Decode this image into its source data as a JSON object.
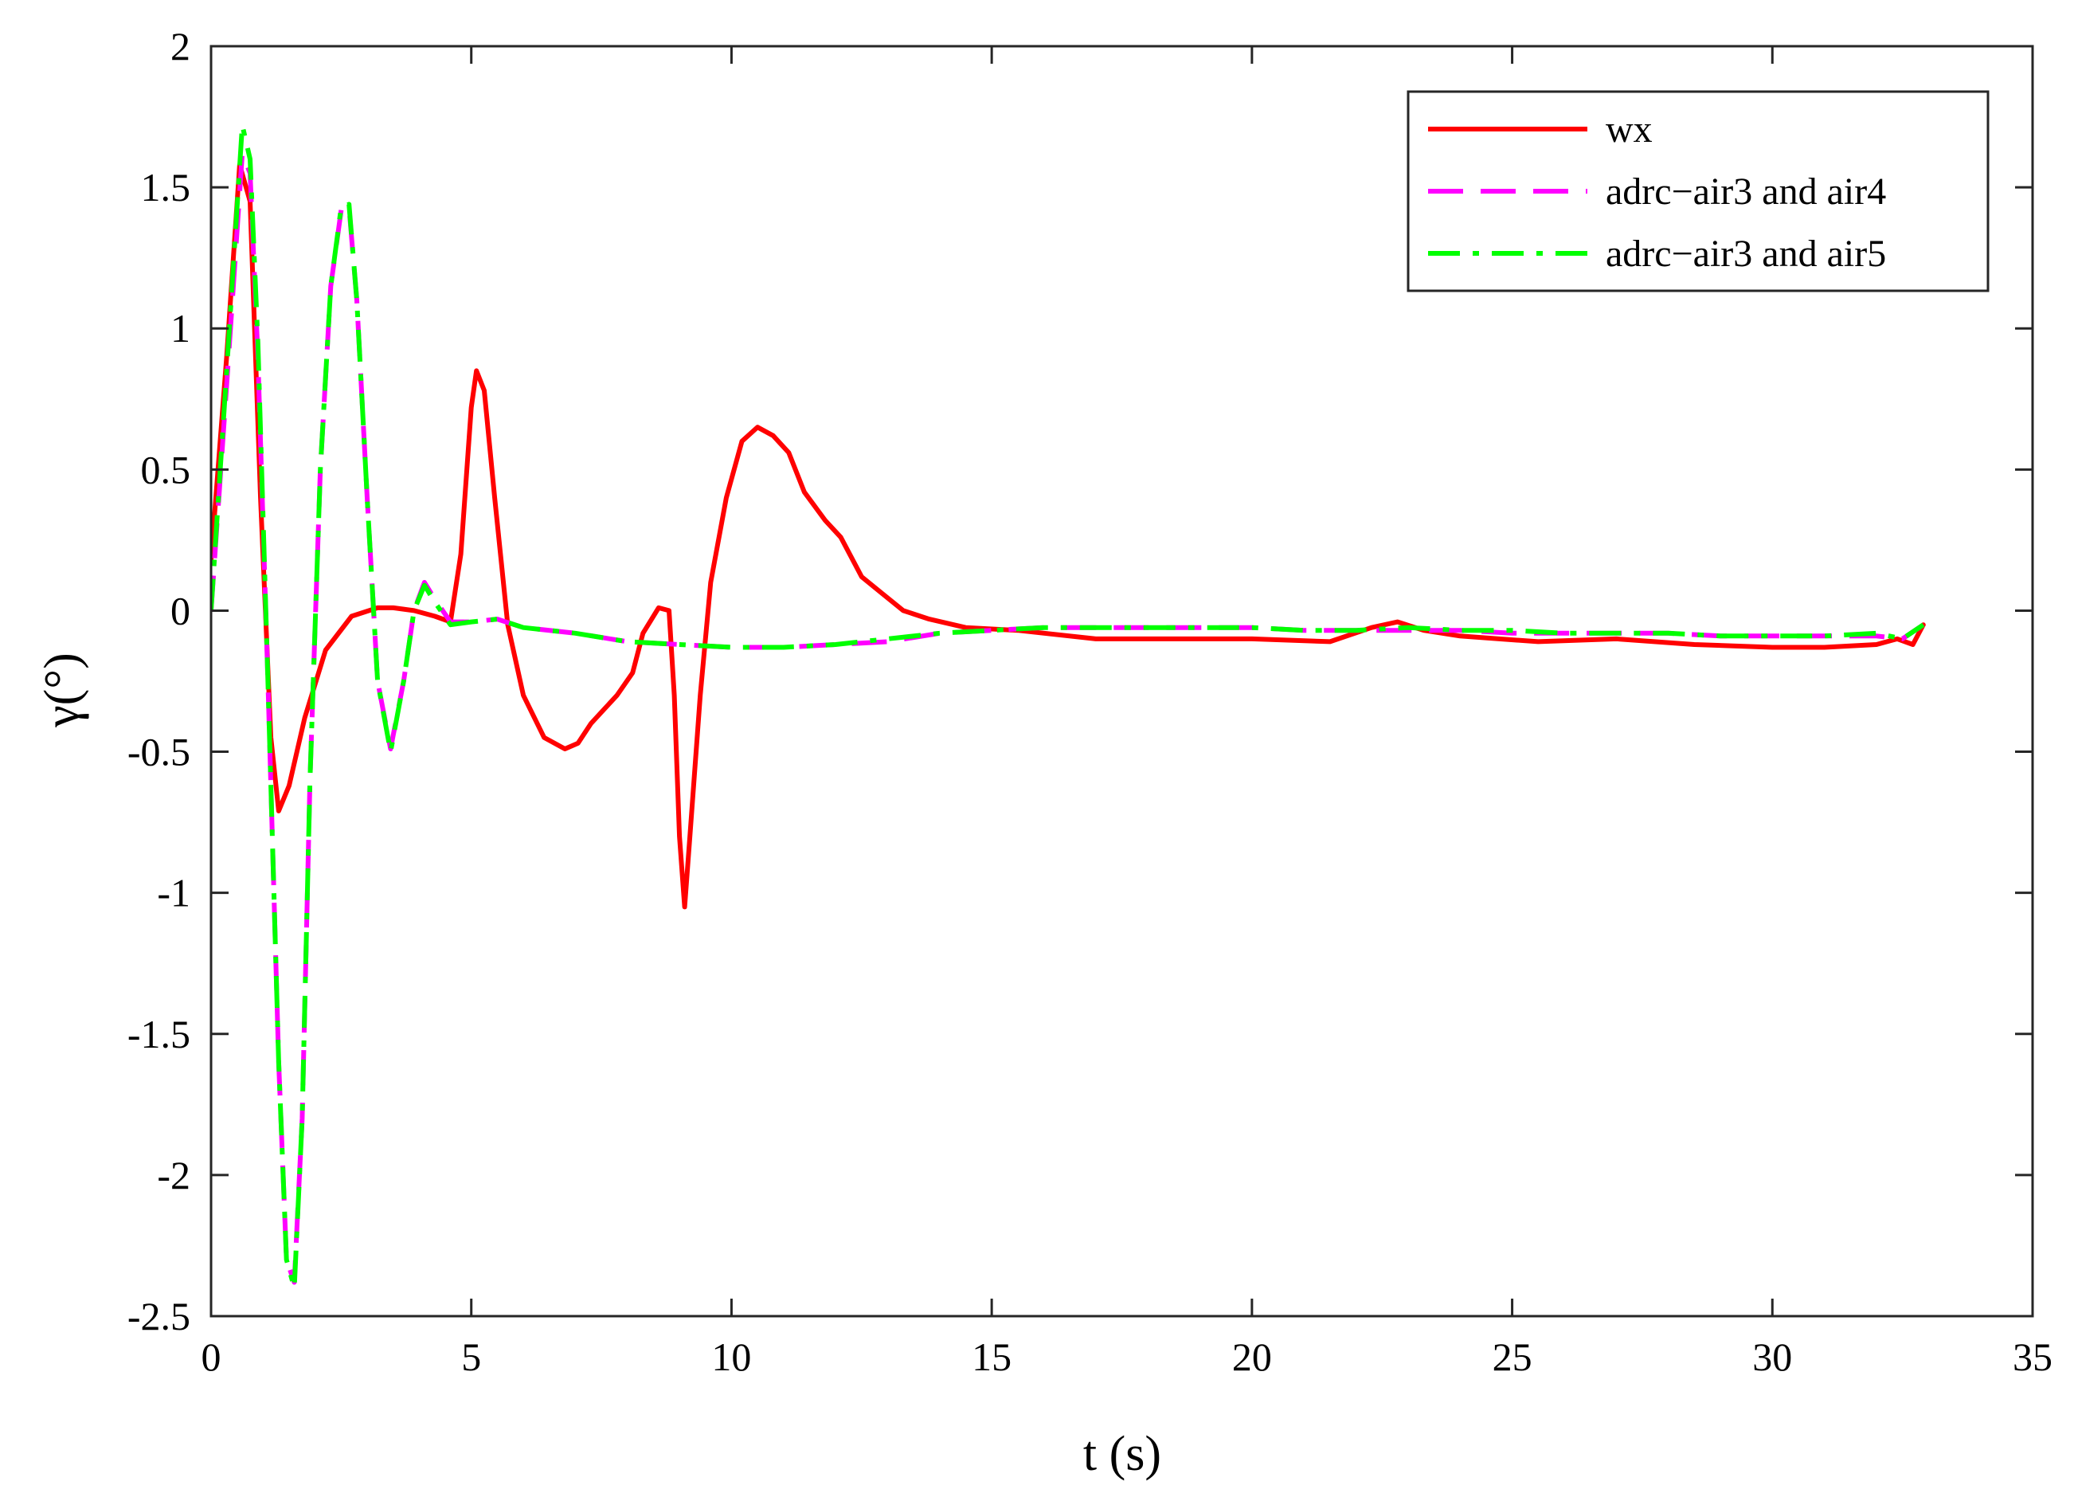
{
  "chart_data": {
    "type": "line",
    "title": "",
    "xlabel": "t (s)",
    "ylabel": "γ(°)",
    "xlim": [
      0,
      35
    ],
    "ylim": [
      -2.5,
      2
    ],
    "xticks": [
      0,
      5,
      10,
      15,
      20,
      25,
      30,
      35
    ],
    "yticks": [
      2,
      1.5,
      1,
      0.5,
      0,
      -0.5,
      -1,
      -1.5,
      -2,
      -2.5
    ],
    "xtick_labels": [
      "0",
      "5",
      "10",
      "15",
      "20",
      "25",
      "30",
      "35"
    ],
    "ytick_labels": [
      "2",
      "1.5",
      "1",
      "0.5",
      "0",
      "-0.5",
      "-1",
      "-1.5",
      "-2",
      "-2.5"
    ],
    "grid": false,
    "legend_position": "top-right",
    "series": [
      {
        "name": "wx",
        "color": "#ff0000",
        "style": "solid",
        "x": [
          0,
          0.3,
          0.55,
          0.75,
          0.95,
          1.15,
          1.3,
          1.5,
          1.8,
          2.2,
          2.7,
          3.2,
          3.5,
          3.9,
          4.3,
          4.6,
          4.8,
          5.0,
          5.1,
          5.25,
          5.45,
          5.7,
          6.0,
          6.4,
          6.8,
          7.05,
          7.3,
          7.8,
          8.1,
          8.3,
          8.6,
          8.8,
          8.9,
          9.0,
          9.1,
          9.2,
          9.4,
          9.6,
          9.9,
          10.2,
          10.5,
          10.8,
          11.1,
          11.4,
          11.8,
          12.1,
          12.5,
          12.9,
          13.3,
          13.8,
          14.5,
          15.5,
          17,
          19,
          20,
          21.5,
          22.3,
          22.8,
          23.3,
          24,
          25.5,
          27,
          28.5,
          30,
          31,
          32,
          32.4,
          32.7,
          32.9
        ],
        "y": [
          0.18,
          0.9,
          1.58,
          1.45,
          0.4,
          -0.45,
          -0.71,
          -0.62,
          -0.38,
          -0.14,
          -0.02,
          0.01,
          0.01,
          0.0,
          -0.02,
          -0.04,
          0.2,
          0.72,
          0.85,
          0.78,
          0.4,
          -0.05,
          -0.3,
          -0.45,
          -0.49,
          -0.47,
          -0.4,
          -0.3,
          -0.22,
          -0.08,
          0.01,
          0.0,
          -0.3,
          -0.8,
          -1.05,
          -0.8,
          -0.3,
          0.1,
          0.4,
          0.6,
          0.65,
          0.62,
          0.56,
          0.42,
          0.32,
          0.26,
          0.12,
          0.06,
          0.0,
          -0.03,
          -0.06,
          -0.07,
          -0.1,
          -0.1,
          -0.1,
          -0.11,
          -0.06,
          -0.04,
          -0.07,
          -0.09,
          -0.11,
          -0.1,
          -0.12,
          -0.13,
          -0.13,
          -0.12,
          -0.1,
          -0.12,
          -0.05
        ]
      },
      {
        "name": "adrc−air3 and air4",
        "color": "#ff00ff",
        "style": "dashed",
        "x": [
          0,
          0.3,
          0.6,
          0.75,
          0.9,
          1.1,
          1.3,
          1.45,
          1.6,
          1.75,
          1.9,
          2.1,
          2.3,
          2.5,
          2.65,
          2.8,
          3.0,
          3.2,
          3.45,
          3.7,
          3.9,
          4.1,
          4.3,
          4.6,
          5.0,
          5.5,
          6.0,
          7.0,
          8.0,
          9.0,
          10.0,
          11.0,
          12.0,
          13.0,
          14.0,
          15.0,
          16.0,
          17.0,
          18.0,
          19.0,
          20.0,
          21.0,
          22.0,
          23.0,
          24.0,
          25.0,
          26.0,
          27.0,
          28.0,
          29.0,
          30.0,
          31.0,
          32.0,
          32.5,
          32.9
        ],
        "y": [
          0.0,
          0.8,
          1.62,
          1.55,
          0.9,
          -0.3,
          -1.6,
          -2.3,
          -2.38,
          -1.8,
          -0.6,
          0.5,
          1.15,
          1.42,
          1.43,
          1.1,
          0.4,
          -0.25,
          -0.49,
          -0.25,
          0.0,
          0.1,
          0.04,
          -0.04,
          -0.04,
          -0.03,
          -0.06,
          -0.08,
          -0.11,
          -0.12,
          -0.13,
          -0.13,
          -0.12,
          -0.11,
          -0.08,
          -0.07,
          -0.06,
          -0.06,
          -0.06,
          -0.06,
          -0.06,
          -0.07,
          -0.07,
          -0.07,
          -0.07,
          -0.08,
          -0.08,
          -0.08,
          -0.08,
          -0.09,
          -0.09,
          -0.09,
          -0.09,
          -0.1,
          -0.05
        ]
      },
      {
        "name": "adrc−air3 and air5",
        "color": "#00ff00",
        "style": "dashdot",
        "x": [
          0,
          0.3,
          0.6,
          0.75,
          0.9,
          1.1,
          1.3,
          1.45,
          1.6,
          1.75,
          1.9,
          2.1,
          2.3,
          2.5,
          2.65,
          2.8,
          3.0,
          3.2,
          3.45,
          3.7,
          3.9,
          4.1,
          4.3,
          4.6,
          5.0,
          5.5,
          6.0,
          7.0,
          8.0,
          9.0,
          10.0,
          11.0,
          12.0,
          13.0,
          14.0,
          15.0,
          16.0,
          17.0,
          18.0,
          19.0,
          20.0,
          21.0,
          22.0,
          23.0,
          24.0,
          25.0,
          26.0,
          27.0,
          28.0,
          29.0,
          30.0,
          31.0,
          32.0,
          32.5,
          32.9
        ],
        "y": [
          0.0,
          0.85,
          1.72,
          1.6,
          0.95,
          -0.3,
          -1.6,
          -2.3,
          -2.4,
          -1.8,
          -0.6,
          0.5,
          1.15,
          1.43,
          1.44,
          1.1,
          0.4,
          -0.25,
          -0.5,
          -0.25,
          0.0,
          0.09,
          0.03,
          -0.05,
          -0.04,
          -0.03,
          -0.06,
          -0.08,
          -0.11,
          -0.12,
          -0.13,
          -0.13,
          -0.12,
          -0.1,
          -0.08,
          -0.07,
          -0.06,
          -0.06,
          -0.06,
          -0.06,
          -0.06,
          -0.07,
          -0.07,
          -0.06,
          -0.07,
          -0.07,
          -0.08,
          -0.08,
          -0.08,
          -0.09,
          -0.09,
          -0.09,
          -0.08,
          -0.1,
          -0.05
        ]
      }
    ]
  }
}
